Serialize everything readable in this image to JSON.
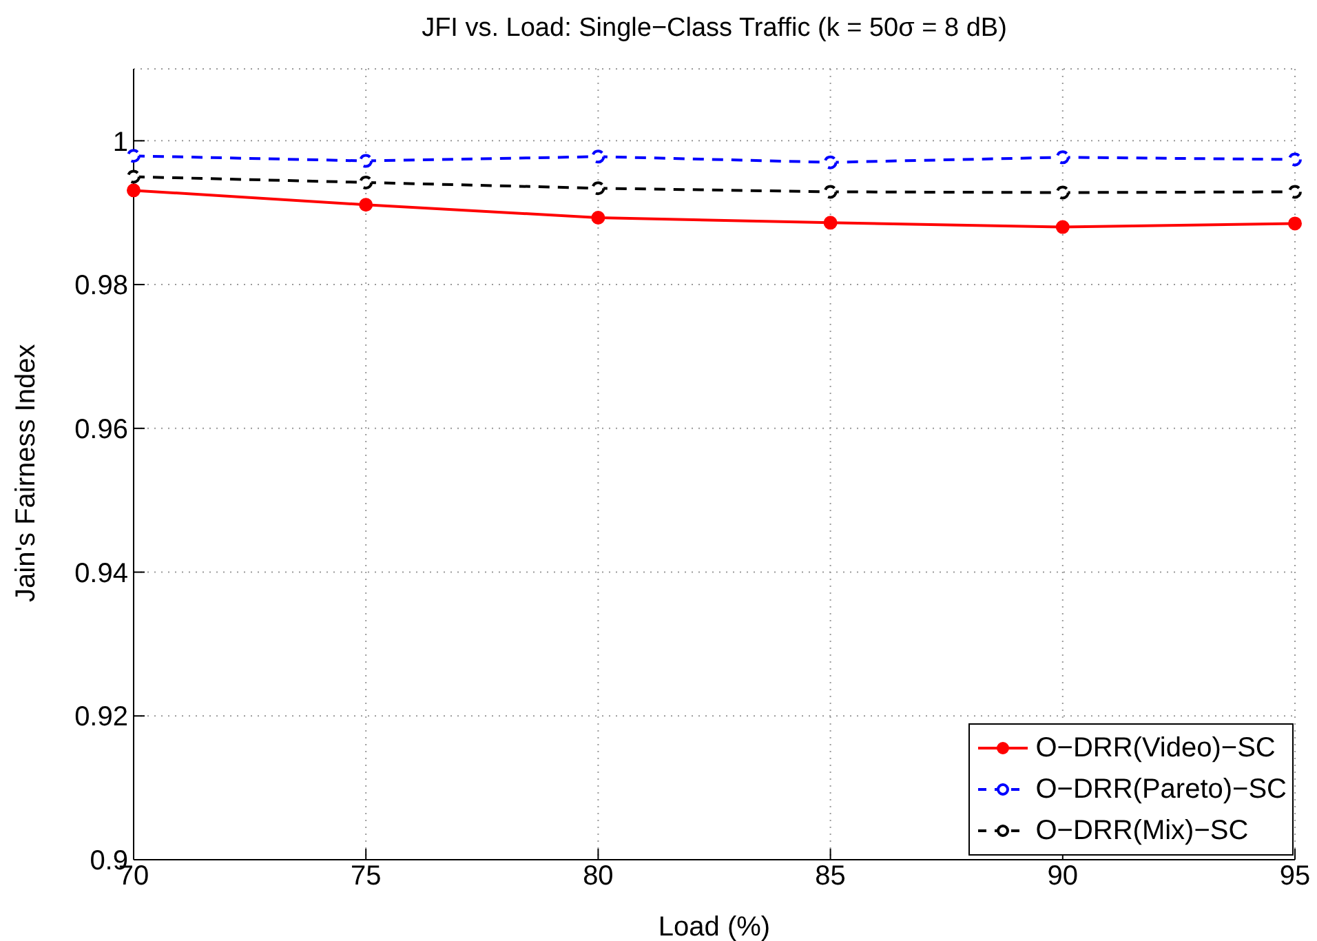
{
  "chart_data": {
    "type": "line",
    "title": "JFI vs. Load: Single−Class Traffic (k = 50σ = 8 dB)",
    "xlabel": "Load (%)",
    "ylabel": "Jain's Fairness Index",
    "x": [
      70,
      75,
      80,
      85,
      90,
      95
    ],
    "series": [
      {
        "name": "O−DRR(Video)−SC",
        "color": "#ff0000",
        "line_style": "solid",
        "values": [
          0.9931,
          0.9911,
          0.9893,
          0.9886,
          0.988,
          0.9885
        ]
      },
      {
        "name": "O−DRR(Pareto)−SC",
        "color": "#0000ff",
        "line_style": "dashed",
        "values": [
          0.9979,
          0.9972,
          0.9978,
          0.997,
          0.9977,
          0.9974
        ]
      },
      {
        "name": "O−DRR(Mix)−SC",
        "color": "#000000",
        "line_style": "dashed",
        "values": [
          0.995,
          0.9942,
          0.9934,
          0.9929,
          0.9928,
          0.9929
        ]
      }
    ],
    "xlim": [
      70,
      95
    ],
    "xticks": [
      70,
      75,
      80,
      85,
      90,
      95
    ],
    "ylim": [
      0.9,
      1.01
    ],
    "yticks": [
      0.9,
      0.92,
      0.94,
      0.96,
      0.98,
      1
    ],
    "grid": true,
    "legend": "bottom right",
    "marker": "circle"
  }
}
